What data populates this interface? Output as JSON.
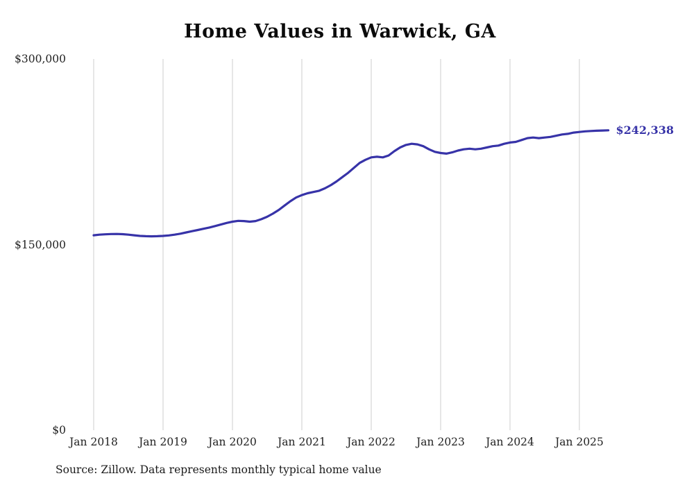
{
  "title": "Home Values in Warwick, GA",
  "source_note": "Source: Zillow. Data represents monthly typical home value",
  "chart_data": {
    "type": "line",
    "title": "Home Values in Warwick, GA",
    "xlabel": "",
    "ylabel": "",
    "ylim": [
      0,
      300000
    ],
    "grid": "vertical-only",
    "line_color": "#3733a8",
    "grid_color": "#cccccc",
    "end_label": "$242,338",
    "x_start": "2018-01",
    "x_freq": "monthly",
    "n_points": 90,
    "x_tick_labels": [
      "Jan 2018",
      "Jan 2019",
      "Jan 2020",
      "Jan 2021",
      "Jan 2022",
      "Jan 2023",
      "Jan 2024",
      "Jan 2025"
    ],
    "y_ticks": [
      {
        "label": "$0",
        "value": 0
      },
      {
        "label": "$150,000",
        "value": 150000
      },
      {
        "label": "$300,000",
        "value": 300000
      }
    ],
    "series": [
      {
        "name": "Monthly typical home value",
        "values": [
          157500,
          158000,
          158300,
          158500,
          158600,
          158400,
          158000,
          157500,
          157000,
          156800,
          156700,
          156800,
          157000,
          157400,
          158000,
          158800,
          159800,
          160800,
          161800,
          162800,
          163800,
          165000,
          166200,
          167500,
          168500,
          169200,
          169000,
          168500,
          169000,
          170500,
          172500,
          175000,
          178000,
          181500,
          185000,
          188000,
          190000,
          191500,
          192500,
          193500,
          195500,
          198000,
          201000,
          204500,
          208000,
          212000,
          216000,
          218500,
          220500,
          221000,
          220500,
          222000,
          225500,
          228500,
          230500,
          231500,
          231000,
          229500,
          227000,
          225000,
          224000,
          223500,
          224500,
          226000,
          227000,
          227500,
          227000,
          227500,
          228500,
          229500,
          230000,
          231500,
          232500,
          233000,
          234500,
          236000,
          236500,
          236000,
          236500,
          237000,
          238000,
          239000,
          239500,
          240500,
          241000,
          241500,
          241800,
          242000,
          242200,
          242338
        ]
      }
    ]
  }
}
